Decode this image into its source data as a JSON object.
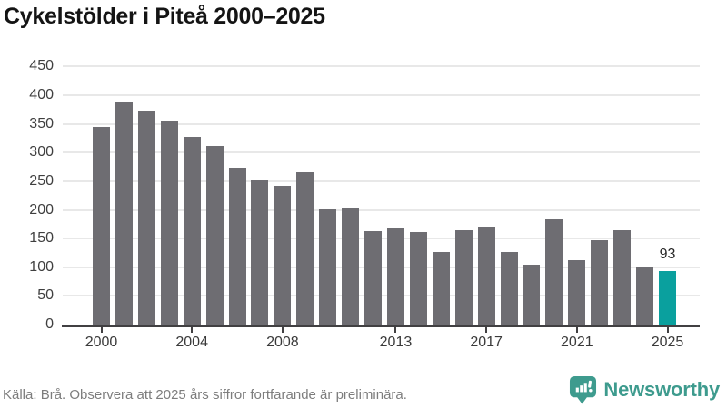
{
  "title": "Cykelstölder i Piteå 2000–2025",
  "colors": {
    "bar": "#6e6d72",
    "highlight": "#0aa09e",
    "brand": "#3e9b8e",
    "gridline": "#e8e8e8",
    "axis": "#414042"
  },
  "chart_data": {
    "type": "bar",
    "title": "Cykelstölder i Piteå 2000–2025",
    "categories": [
      2000,
      2001,
      2002,
      2003,
      2004,
      2005,
      2006,
      2007,
      2008,
      2009,
      2010,
      2011,
      2012,
      2013,
      2014,
      2015,
      2016,
      2017,
      2018,
      2019,
      2020,
      2021,
      2022,
      2023,
      2024,
      2025
    ],
    "values": [
      344,
      388,
      373,
      356,
      328,
      311,
      274,
      253,
      242,
      266,
      202,
      204,
      163,
      168,
      162,
      127,
      164,
      170,
      127,
      105,
      185,
      112,
      147,
      165,
      101,
      93
    ],
    "xlabel": "",
    "ylabel": "",
    "ylim": [
      0,
      450
    ],
    "y_ticks": [
      0,
      50,
      100,
      150,
      200,
      250,
      300,
      350,
      400,
      450
    ],
    "x_tick_labels": [
      "2000",
      "2004",
      "2008",
      "2013",
      "2017",
      "2021",
      "2025"
    ],
    "grid": "horizontal",
    "legend": "none",
    "highlight": {
      "category": 2025,
      "value": 93,
      "label": "93"
    }
  },
  "footer": {
    "source": "Källa: Brå. Observera att 2025 års siffror fortfarande är preliminära.",
    "brand": "Newsworthy"
  }
}
